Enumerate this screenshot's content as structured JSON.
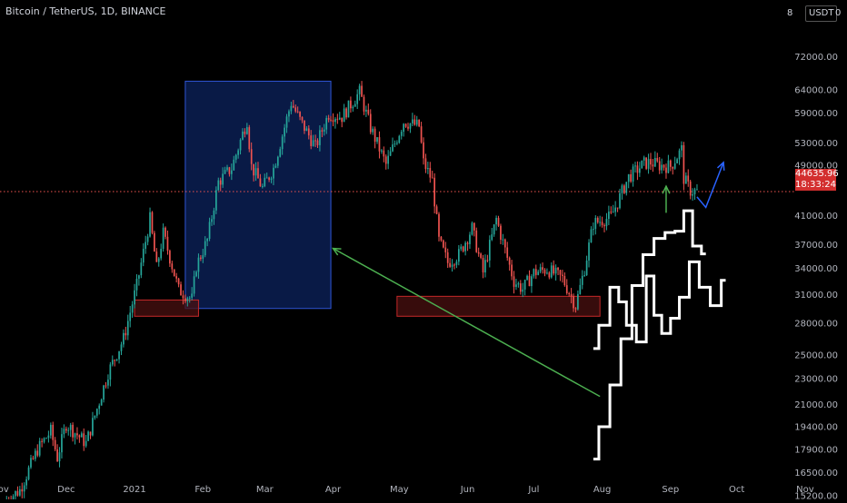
{
  "header": {
    "symbol_title": "Bitcoin / TetherUS, 1D, BINANCE",
    "currency_badge": "USDT",
    "scale_glyph_left": "8",
    "scale_glyph_right": "0"
  },
  "price_tags": {
    "last_price": "44635.96",
    "countdown": "18:33:24"
  },
  "colors": {
    "up": "#26a69a",
    "down": "#ef5350",
    "background": "#000000",
    "zone_fill": "#4a1010",
    "zone_stroke": "#c62828",
    "range_fill": "#0a1e52",
    "range_stroke": "#2f55d4",
    "arrow_green": "#4caf50",
    "arrow_blue": "#2962ff",
    "projection": "#ffffff",
    "last_price_line": "#ef5350"
  },
  "chart_data": {
    "type": "candlestick",
    "title": "Bitcoin / TetherUS, 1D, BINANCE",
    "y_scale": "log",
    "ylim": [
      15000,
      88000
    ],
    "xlim": [
      "2020-11-01",
      "2021-11-20"
    ],
    "y_ticks": [
      "72000.00",
      "64000.00",
      "59000.00",
      "53000.00",
      "49000.00",
      "41000.00",
      "37000.00",
      "34000.00",
      "31000.00",
      "28000.00",
      "25000.00",
      "23000.00",
      "21000.00",
      "19400.00",
      "17900.00",
      "16500.00",
      "15200.00"
    ],
    "x_ticks": [
      {
        "label": "Nov",
        "date": "2020-11-01"
      },
      {
        "label": "Dec",
        "date": "2020-12-01"
      },
      {
        "label": "2021",
        "date": "2021-01-01"
      },
      {
        "label": "Feb",
        "date": "2021-02-01"
      },
      {
        "label": "Mar",
        "date": "2021-03-01"
      },
      {
        "label": "Apr",
        "date": "2021-04-01"
      },
      {
        "label": "May",
        "date": "2021-05-01"
      },
      {
        "label": "Jun",
        "date": "2021-06-01"
      },
      {
        "label": "Jul",
        "date": "2021-07-01"
      },
      {
        "label": "Aug",
        "date": "2021-08-01"
      },
      {
        "label": "Sep",
        "date": "2021-09-01"
      },
      {
        "label": "Oct",
        "date": "2021-10-01"
      },
      {
        "label": "Nov",
        "date": "2021-11-01"
      }
    ],
    "price_anchors": [
      [
        "2020-11-03",
        14900
      ],
      [
        "2020-11-10",
        15500
      ],
      [
        "2020-11-18",
        17900
      ],
      [
        "2020-11-24",
        19100
      ],
      [
        "2020-11-27",
        17400
      ],
      [
        "2020-12-01",
        19600
      ],
      [
        "2020-12-10",
        18300
      ],
      [
        "2020-12-16",
        21200
      ],
      [
        "2020-12-20",
        23500
      ],
      [
        "2020-12-27",
        26500
      ],
      [
        "2021-01-02",
        32000
      ],
      [
        "2021-01-08",
        40500
      ],
      [
        "2021-01-11",
        34000
      ],
      [
        "2021-01-14",
        38500
      ],
      [
        "2021-01-21",
        31500
      ],
      [
        "2021-01-27",
        30500
      ],
      [
        "2021-01-29",
        34300
      ],
      [
        "2021-02-03",
        37600
      ],
      [
        "2021-02-08",
        46200
      ],
      [
        "2021-02-14",
        48500
      ],
      [
        "2021-02-21",
        57500
      ],
      [
        "2021-02-23",
        48800
      ],
      [
        "2021-02-28",
        45200
      ],
      [
        "2021-03-05",
        48500
      ],
      [
        "2021-03-13",
        61200
      ],
      [
        "2021-03-17",
        57500
      ],
      [
        "2021-03-24",
        52300
      ],
      [
        "2021-03-30",
        58800
      ],
      [
        "2021-04-05",
        58200
      ],
      [
        "2021-04-13",
        63500
      ],
      [
        "2021-04-18",
        56000
      ],
      [
        "2021-04-25",
        49100
      ],
      [
        "2021-05-03",
        57200
      ],
      [
        "2021-05-10",
        56300
      ],
      [
        "2021-05-12",
        49500
      ],
      [
        "2021-05-16",
        46400
      ],
      [
        "2021-05-19",
        37500
      ],
      [
        "2021-05-23",
        34700
      ],
      [
        "2021-05-28",
        35700
      ],
      [
        "2021-06-03",
        39200
      ],
      [
        "2021-06-08",
        33500
      ],
      [
        "2021-06-14",
        40500
      ],
      [
        "2021-06-22",
        32500
      ],
      [
        "2021-06-26",
        31600
      ],
      [
        "2021-07-01",
        33500
      ],
      [
        "2021-07-07",
        33900
      ],
      [
        "2021-07-14",
        32800
      ],
      [
        "2021-07-20",
        29800
      ],
      [
        "2021-07-24",
        34000
      ],
      [
        "2021-07-28",
        39900
      ],
      [
        "2021-08-05",
        40800
      ],
      [
        "2021-08-13",
        47000
      ],
      [
        "2021-08-20",
        49300
      ],
      [
        "2021-08-23",
        49500
      ],
      [
        "2021-08-27",
        49000
      ],
      [
        "2021-09-01",
        48800
      ],
      [
        "2021-09-06",
        51800
      ],
      [
        "2021-09-07",
        46800
      ],
      [
        "2021-09-10",
        44800
      ],
      [
        "2021-09-13",
        44635.96
      ]
    ],
    "last_price": 44635.96,
    "annotations": {
      "support_zones": [
        {
          "x0": "2021-01-01",
          "x1": "2021-01-30",
          "y0": 28700,
          "y1": 30400
        },
        {
          "x0": "2021-04-30",
          "x1": "2021-07-31",
          "y0": 28700,
          "y1": 30800
        }
      ],
      "range_box": {
        "x0": "2021-01-24",
        "x1": "2021-03-31",
        "y0": 29500,
        "y1": 66000
      },
      "arrows": [
        {
          "color": "green",
          "from": [
            "2021-07-31",
            21600
          ],
          "to": [
            "2021-04-01",
            36500
          ]
        },
        {
          "color": "green",
          "from": [
            "2021-08-30",
            41400
          ],
          "to": [
            "2021-08-30",
            45500
          ]
        },
        {
          "color": "blue",
          "path": [
            [
              "2021-09-13",
              43800
            ],
            [
              "2021-09-17",
              42200
            ],
            [
              "2021-09-25",
              49500
            ]
          ]
        }
      ],
      "projection_paths": [
        [
          [
            "2021-07-28",
            17300
          ],
          [
            "2021-08-02",
            19400
          ],
          [
            "2021-08-07",
            22500
          ],
          [
            "2021-08-12",
            26500
          ],
          [
            "2021-08-17",
            32000
          ],
          [
            "2021-08-22",
            35700
          ],
          [
            "2021-08-27",
            37800
          ],
          [
            "2021-09-01",
            38600
          ],
          [
            "2021-09-05",
            38800
          ],
          [
            "2021-09-09",
            41700
          ],
          [
            "2021-09-13",
            36800
          ],
          [
            "2021-09-17",
            35800
          ]
        ],
        [
          [
            "2021-07-28",
            25600
          ],
          [
            "2021-08-02",
            27800
          ],
          [
            "2021-08-07",
            31800
          ],
          [
            "2021-08-10",
            30200
          ],
          [
            "2021-08-14",
            27800
          ],
          [
            "2021-08-19",
            26200
          ],
          [
            "2021-08-23",
            33100
          ],
          [
            "2021-08-26",
            28800
          ],
          [
            "2021-08-30",
            27000
          ],
          [
            "2021-09-03",
            28500
          ],
          [
            "2021-09-07",
            30700
          ],
          [
            "2021-09-12",
            34800
          ],
          [
            "2021-09-16",
            31800
          ],
          [
            "2021-09-22",
            29800
          ],
          [
            "2021-09-26",
            32600
          ]
        ]
      ]
    }
  }
}
